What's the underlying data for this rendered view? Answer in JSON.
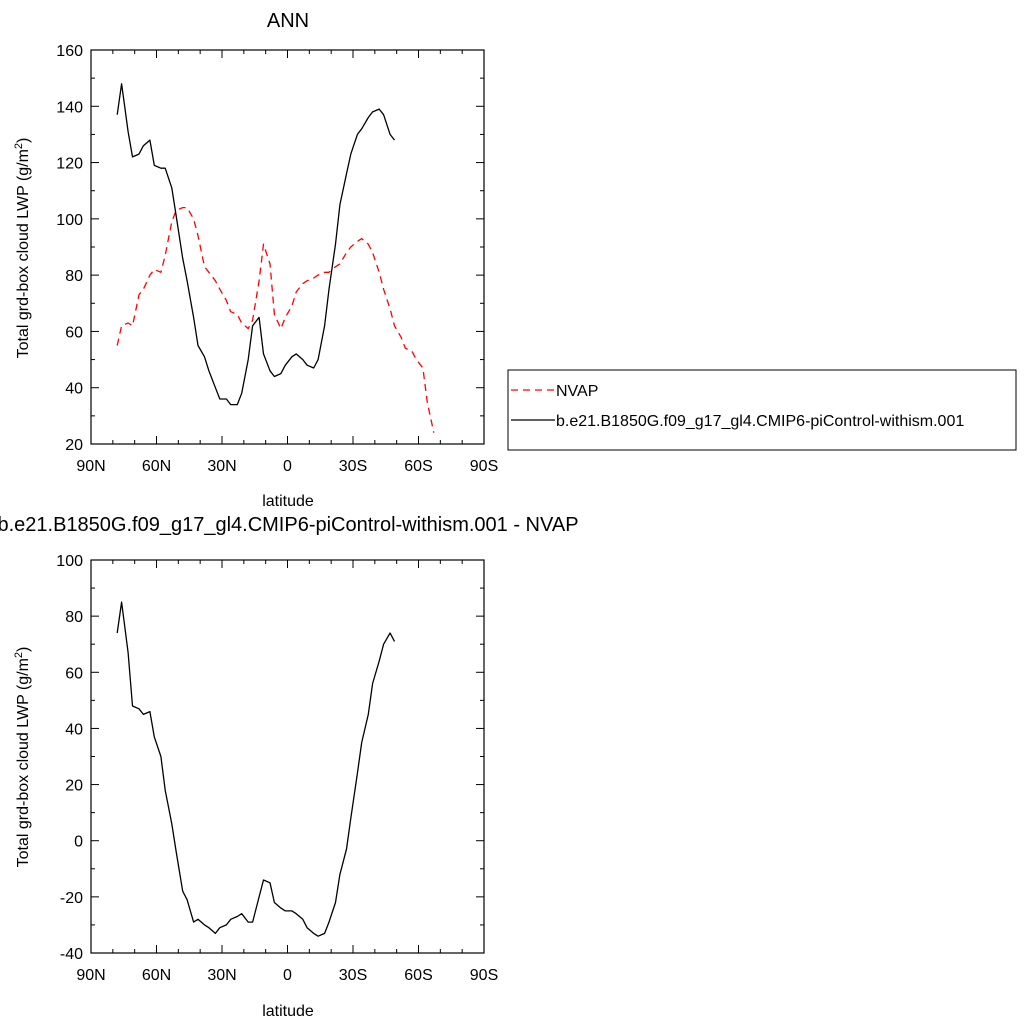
{
  "chart_data": [
    {
      "type": "line",
      "title": "ANN",
      "xlabel": "latitude",
      "ylabel": "Total grd-box cloud LWP (g/m",
      "ylabel_sup": "2",
      "ylabel_end": ")",
      "xlim": [
        90,
        -90
      ],
      "ylim": [
        20,
        160
      ],
      "xticks": [
        90,
        60,
        30,
        0,
        -30,
        -60,
        -90
      ],
      "xtick_labels": [
        "90N",
        "60N",
        "30N",
        "0",
        "30S",
        "60S",
        "90S"
      ],
      "yticks": [
        20,
        40,
        60,
        80,
        100,
        120,
        140,
        160
      ],
      "ytick_labels": [
        "20",
        "40",
        "60",
        "80",
        "100",
        "120",
        "140",
        "160"
      ],
      "legend_position": "right",
      "series": [
        {
          "name": "NVAP",
          "color": "#ff0000",
          "style": "dashed",
          "x": [
            78,
            76,
            73,
            71,
            68,
            66,
            63,
            61,
            58,
            56,
            53,
            51,
            48,
            46,
            43,
            41,
            38,
            36,
            33,
            31,
            28,
            26,
            23,
            21,
            18,
            16,
            13,
            11,
            8,
            6,
            3,
            1,
            -2,
            -4,
            -7,
            -9,
            -12,
            -14,
            -17,
            -19,
            -22,
            -24,
            -27,
            -29,
            -32,
            -34,
            -37,
            -39,
            -42,
            -44,
            -47,
            -49,
            -52,
            -54,
            -57,
            -59,
            -62,
            -64,
            -67,
            -69,
            -72,
            -74,
            -77
          ],
          "y": [
            55,
            62,
            63,
            62,
            73,
            75,
            80,
            82,
            81,
            87,
            99,
            103,
            104,
            104,
            100,
            94,
            83,
            81,
            78,
            75,
            71,
            67,
            66,
            63,
            61,
            64,
            78,
            91,
            84,
            66,
            61,
            65,
            69,
            74,
            77,
            78,
            79,
            80,
            81,
            81,
            83,
            84,
            88,
            90,
            92,
            93,
            91,
            88,
            81,
            75,
            68,
            62,
            58,
            54,
            53,
            50,
            47,
            35,
            24,
            null,
            null,
            null,
            null
          ]
        },
        {
          "name": "b.e21.B1850G.f09_g17_gl4.CMIP6-piControl-withism.001",
          "color": "#000000",
          "style": "solid",
          "x": [
            78,
            76,
            73,
            71,
            68,
            66,
            63,
            61,
            58,
            56,
            53,
            51,
            48,
            46,
            43,
            41,
            38,
            36,
            33,
            31,
            28,
            26,
            23,
            21,
            18,
            16,
            13,
            11,
            8,
            6,
            3,
            1,
            -2,
            -4,
            -7,
            -9,
            -12,
            -14,
            -17,
            -19,
            -22,
            -24,
            -27,
            -29,
            -32,
            -34,
            -37,
            -39,
            -42,
            -44,
            -47,
            -49,
            -52,
            -54,
            -57,
            -59,
            -62,
            -64
          ],
          "y": [
            137,
            148,
            131,
            122,
            123,
            126,
            128,
            119,
            118,
            118,
            111,
            101,
            86,
            78,
            65,
            55,
            51,
            46,
            40,
            36,
            36,
            34,
            34,
            38,
            50,
            62,
            65,
            52,
            46,
            44,
            45,
            48,
            51,
            52,
            50,
            48,
            47,
            50,
            62,
            75,
            91,
            105,
            116,
            123,
            130,
            132,
            136,
            138,
            139,
            137,
            130,
            128,
            null,
            null,
            null,
            null,
            null,
            null
          ]
        }
      ]
    },
    {
      "type": "line",
      "title": "b.e21.B1850G.f09_g17_gl4.CMIP6-piControl-withism.001 - NVAP",
      "xlabel": "latitude",
      "ylabel": "Total grd-box cloud LWP (g/m",
      "ylabel_sup": "2",
      "ylabel_end": ")",
      "xlim": [
        90,
        -90
      ],
      "ylim": [
        -40,
        100
      ],
      "xticks": [
        90,
        60,
        30,
        0,
        -30,
        -60,
        -90
      ],
      "xtick_labels": [
        "90N",
        "60N",
        "30N",
        "0",
        "30S",
        "60S",
        "90S"
      ],
      "yticks": [
        -40,
        -20,
        0,
        20,
        40,
        60,
        80,
        100
      ],
      "ytick_labels": [
        "-40",
        "-20",
        "0",
        "20",
        "40",
        "60",
        "80",
        "100"
      ],
      "series": [
        {
          "color": "#000000",
          "style": "solid",
          "x": [
            78,
            76,
            73,
            71,
            68,
            66,
            63,
            61,
            58,
            56,
            53,
            51,
            48,
            46,
            43,
            41,
            38,
            36,
            33,
            31,
            28,
            26,
            23,
            21,
            18,
            16,
            13,
            11,
            8,
            6,
            3,
            1,
            -2,
            -4,
            -7,
            -9,
            -12,
            -14,
            -17,
            -19,
            -22,
            -24,
            -27,
            -29,
            -32,
            -34,
            -37,
            -39,
            -42,
            -44,
            -47,
            -49,
            -52,
            -54,
            -57,
            -59,
            -62,
            -64
          ],
          "y": [
            74,
            85,
            67,
            48,
            47,
            45,
            46,
            37,
            30,
            18,
            6,
            -4,
            -18,
            -21,
            -29,
            -28,
            -30,
            -31,
            -33,
            -31,
            -30,
            -28,
            -27,
            -26,
            -29,
            -29,
            -20,
            -14,
            -15,
            -22,
            -24,
            -25,
            -25,
            -26,
            -28,
            -31,
            -33,
            -34,
            -33,
            -29,
            -22,
            -12,
            -3,
            8,
            24,
            35,
            45,
            56,
            64,
            70,
            74,
            71,
            null,
            null,
            null,
            null,
            null,
            null
          ]
        }
      ]
    }
  ]
}
